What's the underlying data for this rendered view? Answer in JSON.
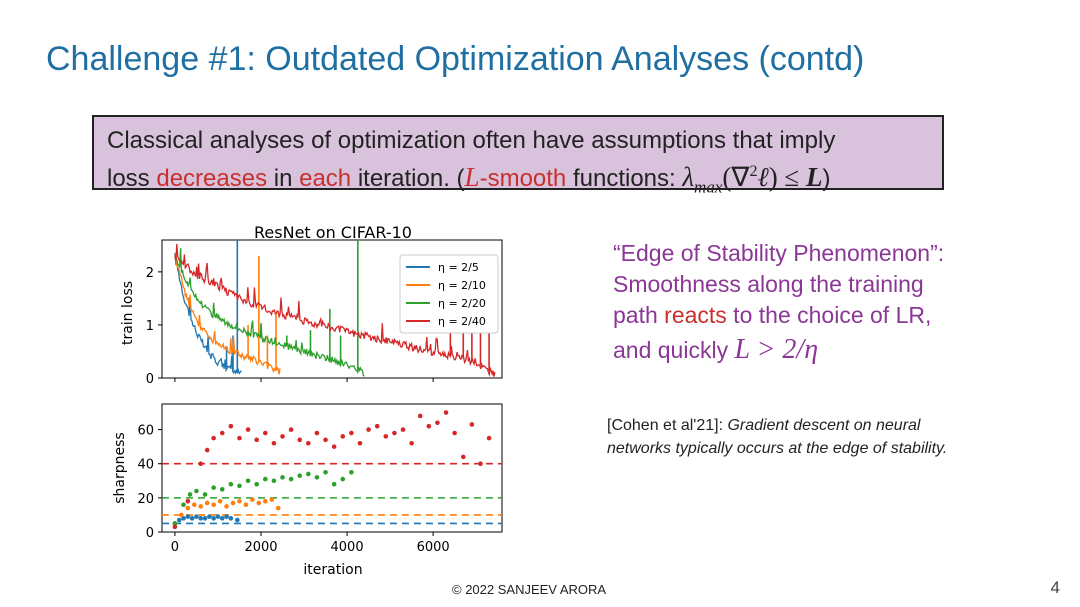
{
  "slide": {
    "title": "Challenge #1: Outdated Optimization Analyses (contd)",
    "page_number": "4",
    "footer": "© 2022 SANJEEV ARORA"
  },
  "callout": {
    "line1": "Classical analyses of optimization often have assumptions that imply",
    "line2_a": "loss ",
    "line2_red1": "decreases",
    "line2_b": " in ",
    "line2_red2": "each",
    "line2_c": " iteration. (",
    "line2_L": "L",
    "line2_red3": "-smooth",
    "line2_d": " functions: ",
    "math_lambda": "λ",
    "math_sub": "max",
    "math_open": "(∇",
    "math_sup": "2",
    "math_ell": "ℓ",
    "math_rest": ") ≤ ",
    "math_L": "L",
    "line2_end": ")"
  },
  "edge": {
    "line1": "“Edge of Stability Phenomenon”:",
    "line2": "Smoothness along the training",
    "line3_a": "path ",
    "line3_red": "reacts",
    "line3_b": " to the choice of LR,",
    "line4_a": "and quickly ",
    "line4_math": "L > 2/η"
  },
  "cite": {
    "ref": "[Cohen et al'21]: ",
    "text_a": "Gradient descent on neural",
    "text_b": "networks typically occurs at the edge of stability."
  },
  "colors": {
    "title": "#1f6fa3",
    "callout_bg": "#d9c3dc",
    "accent_red": "#c8302d",
    "purple": "#8a3796",
    "series": [
      "#1f77b4",
      "#ff7f0e",
      "#2ca02c",
      "#d62728"
    ]
  },
  "chart_data": [
    {
      "type": "line",
      "title": "ResNet on CIFAR-10",
      "xlabel": "",
      "ylabel": "train loss",
      "xlim": [
        -300,
        7600
      ],
      "ylim": [
        0,
        2.6
      ],
      "yticks": [
        0,
        1,
        2
      ],
      "legend_position": "top-right",
      "series": [
        {
          "name": "η = 2/5",
          "diverge_at": 1450,
          "end": 1550,
          "x": [
            0,
            200,
            400,
            600,
            800,
            1000,
            1200,
            1400,
            1550
          ],
          "y": [
            2.3,
            1.55,
            1.05,
            0.7,
            0.45,
            0.3,
            0.2,
            0.12,
            0.08
          ],
          "spikes": [
            [
              1200,
              0.6
            ],
            [
              1350,
              0.8
            ],
            [
              1450,
              2.6
            ]
          ]
        },
        {
          "name": "η = 2/10",
          "diverge_at": null,
          "end": 2450,
          "x": [
            0,
            300,
            600,
            900,
            1200,
            1500,
            1800,
            2100,
            2450
          ],
          "y": [
            2.3,
            1.45,
            0.95,
            0.7,
            0.55,
            0.45,
            0.35,
            0.25,
            0.12
          ],
          "spikes": [
            [
              1700,
              1.0
            ],
            [
              1950,
              2.3
            ],
            [
              2150,
              0.8
            ],
            [
              2350,
              1.2
            ]
          ]
        },
        {
          "name": "η = 2/20",
          "diverge_at": 4250,
          "end": 4400,
          "x": [
            0,
            400,
            800,
            1200,
            1600,
            2000,
            2400,
            2800,
            3200,
            3600,
            4000,
            4400
          ],
          "y": [
            2.3,
            1.6,
            1.25,
            1.05,
            0.9,
            0.75,
            0.65,
            0.55,
            0.45,
            0.35,
            0.25,
            0.1
          ],
          "spikes": [
            [
              2000,
              1.0
            ],
            [
              2600,
              0.8
            ],
            [
              3150,
              0.9
            ],
            [
              3600,
              1.3
            ],
            [
              3850,
              0.8
            ],
            [
              4250,
              2.6
            ]
          ]
        },
        {
          "name": "η = 2/40",
          "diverge_at": null,
          "end": 7450,
          "x": [
            0,
            500,
            1000,
            1500,
            2000,
            2500,
            3000,
            3500,
            4000,
            4500,
            5000,
            5500,
            6000,
            6500,
            7000,
            7450
          ],
          "y": [
            2.3,
            1.95,
            1.72,
            1.5,
            1.33,
            1.2,
            1.08,
            0.98,
            0.88,
            0.78,
            0.68,
            0.58,
            0.48,
            0.4,
            0.3,
            0.05
          ],
          "spikes": [
            [
              6400,
              0.9
            ],
            [
              6700,
              1.0
            ],
            [
              6900,
              1.1
            ],
            [
              7100,
              1.3
            ],
            [
              7300,
              1.15
            ]
          ]
        }
      ]
    },
    {
      "type": "scatter",
      "title": "",
      "xlabel": "iteration",
      "ylabel": "sharpness",
      "xlim": [
        -300,
        7600
      ],
      "ylim": [
        0,
        75
      ],
      "xticks": [
        0,
        2000,
        4000,
        6000
      ],
      "yticks": [
        0,
        20,
        40,
        60
      ],
      "thresholds": [
        {
          "name": "2/η for η = 2/5",
          "value": 5
        },
        {
          "name": "2/η for η = 2/10",
          "value": 10
        },
        {
          "name": "2/η for η = 2/20",
          "value": 20
        },
        {
          "name": "2/η for η = 2/40",
          "value": 40
        }
      ],
      "series": [
        {
          "name": "η = 2/5",
          "x": [
            0,
            100,
            200,
            300,
            400,
            500,
            600,
            700,
            800,
            900,
            1000,
            1100,
            1200,
            1300,
            1450
          ],
          "y": [
            5,
            7,
            8,
            9,
            8,
            9,
            8,
            8,
            9,
            8,
            9,
            8,
            9,
            8,
            7
          ]
        },
        {
          "name": "η = 2/10",
          "x": [
            0,
            150,
            300,
            450,
            600,
            750,
            900,
            1050,
            1200,
            1350,
            1500,
            1650,
            1800,
            1950,
            2100,
            2250,
            2400
          ],
          "y": [
            5,
            10,
            14,
            16,
            15,
            17,
            16,
            18,
            15,
            17,
            18,
            16,
            19,
            17,
            18,
            19,
            14
          ]
        },
        {
          "name": "η = 2/20",
          "x": [
            0,
            200,
            350,
            500,
            700,
            900,
            1100,
            1300,
            1500,
            1700,
            1900,
            2100,
            2300,
            2500,
            2700,
            2900,
            3100,
            3300,
            3500,
            3700,
            3900,
            4100
          ],
          "y": [
            5,
            16,
            22,
            24,
            22,
            26,
            25,
            28,
            27,
            30,
            28,
            31,
            30,
            32,
            31,
            33,
            34,
            32,
            35,
            28,
            31,
            35
          ]
        },
        {
          "name": "η = 2/40",
          "x": [
            0,
            300,
            600,
            750,
            900,
            1100,
            1300,
            1500,
            1700,
            1900,
            2100,
            2300,
            2500,
            2700,
            2900,
            3100,
            3300,
            3500,
            3700,
            3900,
            4100,
            4300,
            4500,
            4700,
            4900,
            5100,
            5300,
            5500,
            5700,
            5900,
            6100,
            6300,
            6500,
            6700,
            6900,
            7100,
            7300
          ],
          "y": [
            3,
            18,
            40,
            48,
            55,
            58,
            62,
            55,
            60,
            54,
            58,
            52,
            56,
            60,
            54,
            52,
            58,
            54,
            50,
            56,
            58,
            52,
            60,
            62,
            56,
            58,
            60,
            52,
            68,
            62,
            64,
            70,
            58,
            44,
            63,
            40,
            55
          ]
        }
      ]
    }
  ]
}
